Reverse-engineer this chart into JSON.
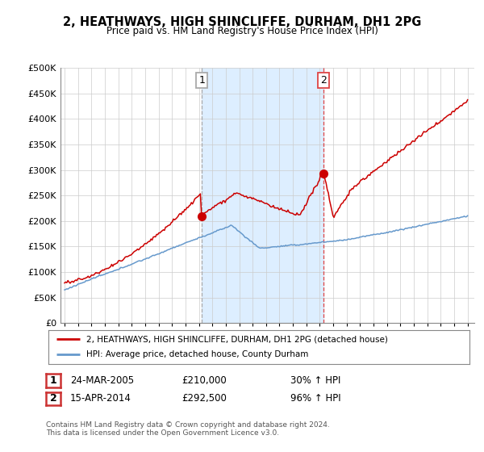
{
  "title": "2, HEATHWAYS, HIGH SHINCLIFFE, DURHAM, DH1 2PG",
  "subtitle": "Price paid vs. HM Land Registry's House Price Index (HPI)",
  "legend_line1": "2, HEATHWAYS, HIGH SHINCLIFFE, DURHAM, DH1 2PG (detached house)",
  "legend_line2": "HPI: Average price, detached house, County Durham",
  "sale1_label": "1",
  "sale1_date": "24-MAR-2005",
  "sale1_price": "£210,000",
  "sale1_hpi": "30% ↑ HPI",
  "sale2_label": "2",
  "sale2_date": "15-APR-2014",
  "sale2_price": "£292,500",
  "sale2_hpi": "96% ↑ HPI",
  "footer": "Contains HM Land Registry data © Crown copyright and database right 2024.\nThis data is licensed under the Open Government Licence v3.0.",
  "red_color": "#cc0000",
  "blue_color": "#6699cc",
  "shade_color": "#ddeeff",
  "vline1_color": "#aaaaaa",
  "vline2_color": "#dd4444",
  "bg_outside": "#ffffff",
  "ylim": [
    0,
    500000
  ],
  "yticks": [
    0,
    50000,
    100000,
    150000,
    200000,
    250000,
    300000,
    350000,
    400000,
    450000,
    500000
  ],
  "xmin": 1994.7,
  "xmax": 2025.5,
  "sale1_x": 2005.22,
  "sale2_x": 2014.28,
  "sale1_y": 210000,
  "sale2_y": 292500
}
